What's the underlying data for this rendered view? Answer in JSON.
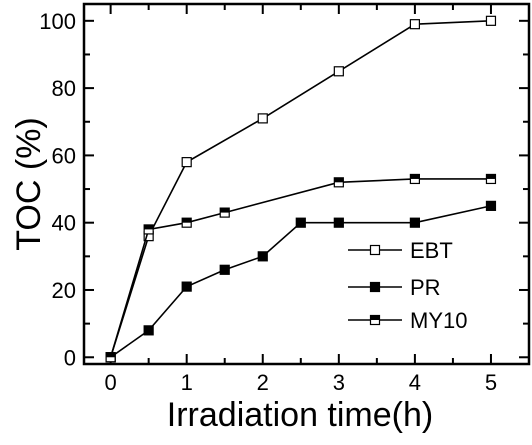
{
  "chart_data": {
    "type": "line",
    "x": [
      0,
      0.5,
      1,
      1.5,
      2,
      2.5,
      3,
      4,
      5
    ],
    "series": [
      {
        "name": "EBT",
        "marker": "open-square",
        "x": [
          0,
          0.5,
          1,
          2,
          3,
          4,
          5
        ],
        "values": [
          0,
          36,
          58,
          71,
          85,
          99,
          100
        ]
      },
      {
        "name": "PR",
        "marker": "filled-square",
        "x": [
          0,
          0.5,
          1,
          1.5,
          2,
          2.5,
          3,
          4,
          5
        ],
        "values": [
          0,
          8,
          21,
          26,
          30,
          40,
          40,
          40,
          45
        ]
      },
      {
        "name": "MY10",
        "marker": "half-filled-square",
        "x": [
          0,
          0.5,
          1,
          1.5,
          3,
          4,
          5
        ],
        "values": [
          0,
          38,
          40,
          43,
          52,
          53,
          53
        ]
      }
    ],
    "xlabel": "Irradiation time(h)",
    "ylabel": "TOC (%)",
    "xlim": [
      -0.35,
      5.5
    ],
    "ylim": [
      -2,
      105
    ],
    "xticks": [
      "0",
      "1",
      "2",
      "3",
      "4",
      "5"
    ],
    "yticks": [
      "0",
      "20",
      "40",
      "60",
      "80",
      "100"
    ],
    "legend_position": "bottom-right",
    "grid": false
  }
}
